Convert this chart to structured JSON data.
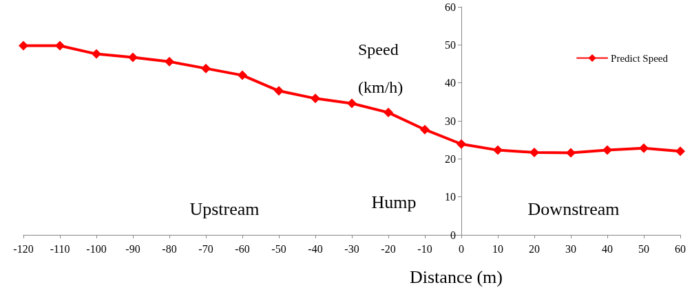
{
  "chart_data": {
    "type": "line",
    "xlabel": "Distance (m)",
    "ylabel": "Speed (km/h)",
    "x": [
      -120,
      -110,
      -100,
      -90,
      -80,
      -70,
      -60,
      -50,
      -40,
      -30,
      -20,
      -10,
      0,
      10,
      20,
      30,
      40,
      50,
      60
    ],
    "series": [
      {
        "name": "Predict Speed",
        "color": "#ff0000",
        "values": [
          49.8,
          49.8,
          47.6,
          46.7,
          45.6,
          43.8,
          42,
          37.9,
          35.9,
          34.6,
          32.2,
          27.7,
          23.9,
          22.3,
          21.7,
          21.6,
          22.3,
          22.8,
          22
        ]
      }
    ],
    "xlim": [
      -120,
      60
    ],
    "xticks": [
      -120,
      -110,
      -100,
      -90,
      -80,
      -70,
      -60,
      -50,
      -40,
      -30,
      -20,
      -10,
      0,
      10,
      20,
      30,
      40,
      50,
      60
    ],
    "ylim": [
      0,
      60
    ],
    "yticks": [
      0,
      10,
      20,
      30,
      40,
      50,
      60
    ],
    "annotations": [
      "Upstream",
      "Hump",
      "Downstream"
    ],
    "marker": "diamond",
    "line_style": "solid",
    "legend": "top right"
  }
}
